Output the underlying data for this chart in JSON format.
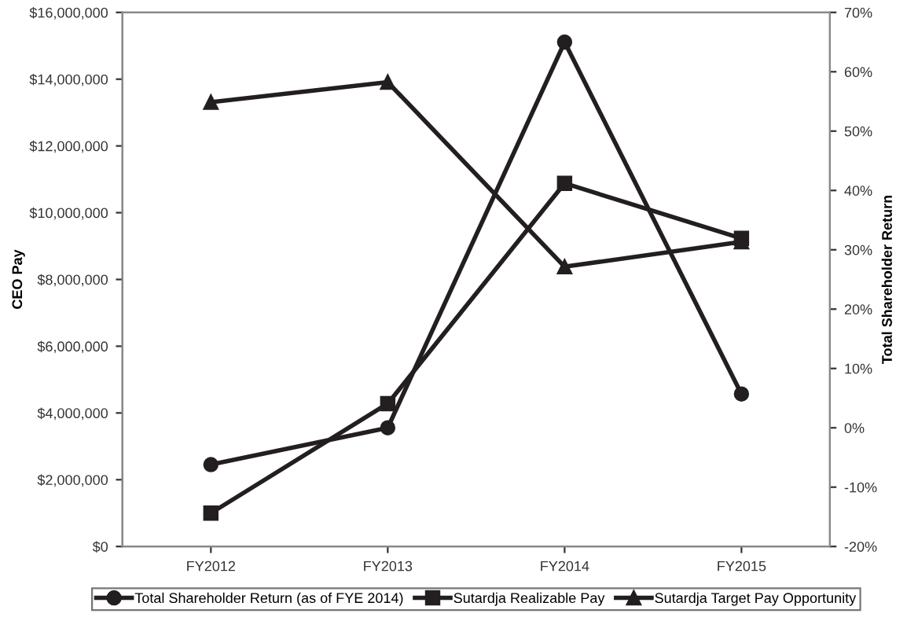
{
  "chart_data": {
    "type": "line",
    "ylabel": "CEO Pay",
    "y2label": "Total Shareholder Return",
    "categories": [
      "FY2012",
      "FY2013",
      "FY2014",
      "FY2015"
    ],
    "series": [
      {
        "name": "Total Shareholder Return (as of FYE 2014)",
        "color": "#231f20",
        "marker": "circle",
        "axis": "y2",
        "values": [
          -6.2,
          0,
          65,
          5.7
        ]
      },
      {
        "name": "Sutardja Realizable Pay",
        "color": "#231f20",
        "marker": "square",
        "values": [
          1000000,
          4280000,
          10880000,
          9230000
        ]
      },
      {
        "name": "Sutardja Target Pay Opportunity",
        "color": "#231f20",
        "marker": "triangle",
        "values": [
          13310000,
          13910000,
          8380000,
          9130000
        ]
      }
    ],
    "ylim": [
      0,
      16000000
    ],
    "yticks": [
      {
        "value": 0,
        "label": "$0"
      },
      {
        "value": 2000000,
        "label": "$2,000,000"
      },
      {
        "value": 4000000,
        "label": "$4,000,000"
      },
      {
        "value": 6000000,
        "label": "$6,000,000"
      },
      {
        "value": 8000000,
        "label": "$8,000,000"
      },
      {
        "value": 10000000,
        "label": "$10,000,000"
      },
      {
        "value": 12000000,
        "label": "$12,000,000"
      },
      {
        "value": 14000000,
        "label": "$14,000,000"
      },
      {
        "value": 16000000,
        "label": "$16,000,000"
      }
    ],
    "y2lim": [
      -20,
      70
    ],
    "y2ticks": [
      {
        "value": -20,
        "label": "-20%"
      },
      {
        "value": -10,
        "label": "-10%"
      },
      {
        "value": 0,
        "label": "0%"
      },
      {
        "value": 10,
        "label": "10%"
      },
      {
        "value": 20,
        "label": "20%"
      },
      {
        "value": 30,
        "label": "30%"
      },
      {
        "value": 40,
        "label": "40%"
      },
      {
        "value": 50,
        "label": "50%"
      },
      {
        "value": 60,
        "label": "60%"
      },
      {
        "value": 70,
        "label": "70%"
      }
    ],
    "grid": false,
    "legend": "bottom",
    "line_style": "solid"
  }
}
